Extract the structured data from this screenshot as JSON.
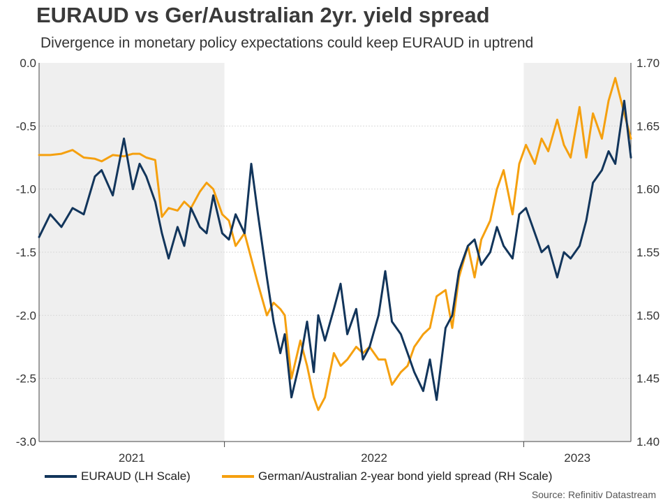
{
  "chart_data": {
    "type": "line",
    "title": "EURAUD vs Ger/Australian 2yr. yield spread",
    "subtitle": "Divergence in monetary policy expectations could keep EURAUD in uptrend",
    "source": "Source: Refinitiv Datastream",
    "x_tick_labels": [
      "2021",
      "2022",
      "2023"
    ],
    "x_range": [
      2020.55,
      2023.2
    ],
    "year_boundaries": [
      2021.38,
      2022.72
    ],
    "shaded_ranges": [
      [
        2020.55,
        2021.38
      ],
      [
        2022.72,
        2023.2
      ]
    ],
    "y_left": {
      "ylim": [
        -3.0,
        0.0
      ],
      "ticks": [
        "0.0",
        "-0.5",
        "-1.0",
        "-1.5",
        "-2.0",
        "-2.5",
        "-3.0"
      ]
    },
    "y_right": {
      "ylim": [
        1.4,
        1.7
      ],
      "ticks": [
        "1.70",
        "1.65",
        "1.60",
        "1.55",
        "1.50",
        "1.45",
        "1.40"
      ]
    },
    "grid": true,
    "series": [
      {
        "name": "EURAUD (LH Scale)",
        "axis": "left",
        "color": "#12355b",
        "x": [
          2020.55,
          2020.6,
          2020.65,
          2020.7,
          2020.75,
          2020.8,
          2020.83,
          2020.88,
          2020.93,
          2020.97,
          2021.0,
          2021.03,
          2021.07,
          2021.1,
          2021.13,
          2021.17,
          2021.2,
          2021.23,
          2021.27,
          2021.3,
          2021.33,
          2021.37,
          2021.4,
          2021.43,
          2021.47,
          2021.5,
          2021.53,
          2021.57,
          2021.6,
          2021.63,
          2021.65,
          2021.68,
          2021.72,
          2021.75,
          2021.78,
          2021.8,
          2021.83,
          2021.87,
          2021.9,
          2021.93,
          2021.97,
          2022.0,
          2022.03,
          2022.07,
          2022.1,
          2022.13,
          2022.17,
          2022.2,
          2022.23,
          2022.27,
          2022.3,
          2022.33,
          2022.37,
          2022.4,
          2022.43,
          2022.47,
          2022.5,
          2022.53,
          2022.57,
          2022.6,
          2022.63,
          2022.67,
          2022.7,
          2022.73,
          2022.77,
          2022.8,
          2022.83,
          2022.87,
          2022.9,
          2022.93,
          2022.97,
          2023.0,
          2023.03,
          2023.07,
          2023.1,
          2023.13,
          2023.17,
          2023.2
        ],
        "values": [
          -1.38,
          -1.2,
          -1.3,
          -1.15,
          -1.2,
          -0.9,
          -0.85,
          -1.05,
          -0.6,
          -1.0,
          -0.8,
          -0.9,
          -1.1,
          -1.35,
          -1.55,
          -1.3,
          -1.45,
          -1.15,
          -1.3,
          -1.35,
          -1.05,
          -1.35,
          -1.4,
          -1.2,
          -1.35,
          -0.8,
          -1.2,
          -1.7,
          -2.05,
          -2.3,
          -2.15,
          -2.65,
          -2.35,
          -2.05,
          -2.45,
          -2.0,
          -2.2,
          -1.95,
          -1.75,
          -2.15,
          -1.95,
          -2.35,
          -2.25,
          -2.0,
          -1.65,
          -2.05,
          -2.15,
          -2.3,
          -2.45,
          -2.6,
          -2.35,
          -2.67,
          -2.1,
          -2.0,
          -1.65,
          -1.45,
          -1.4,
          -1.6,
          -1.5,
          -1.3,
          -1.45,
          -1.55,
          -1.2,
          -1.15,
          -1.35,
          -1.5,
          -1.45,
          -1.7,
          -1.5,
          -1.55,
          -1.45,
          -1.25,
          -0.95,
          -0.85,
          -0.7,
          -0.8,
          -0.3,
          -0.75
        ]
      },
      {
        "name": "German/Australian 2-year bond yield spread (RH Scale)",
        "axis": "right",
        "color": "#f5a00f",
        "x": [
          2020.55,
          2020.6,
          2020.65,
          2020.7,
          2020.75,
          2020.8,
          2020.83,
          2020.88,
          2020.93,
          2020.97,
          2021.0,
          2021.03,
          2021.07,
          2021.1,
          2021.13,
          2021.17,
          2021.2,
          2021.23,
          2021.27,
          2021.3,
          2021.33,
          2021.37,
          2021.4,
          2021.43,
          2021.47,
          2021.5,
          2021.53,
          2021.57,
          2021.6,
          2021.63,
          2021.65,
          2021.68,
          2021.72,
          2021.75,
          2021.78,
          2021.8,
          2021.83,
          2021.87,
          2021.9,
          2021.93,
          2021.97,
          2022.0,
          2022.03,
          2022.07,
          2022.1,
          2022.13,
          2022.17,
          2022.2,
          2022.23,
          2022.27,
          2022.3,
          2022.33,
          2022.37,
          2022.4,
          2022.43,
          2022.47,
          2022.5,
          2022.53,
          2022.57,
          2022.6,
          2022.63,
          2022.67,
          2022.7,
          2022.73,
          2022.77,
          2022.8,
          2022.83,
          2022.87,
          2022.9,
          2022.93,
          2022.97,
          2023.0,
          2023.03,
          2023.07,
          2023.1,
          2023.13,
          2023.17,
          2023.2
        ],
        "values": [
          1.627,
          1.627,
          1.628,
          1.631,
          1.625,
          1.624,
          1.622,
          1.627,
          1.626,
          1.628,
          1.628,
          1.625,
          1.623,
          1.578,
          1.585,
          1.583,
          1.59,
          1.585,
          1.598,
          1.605,
          1.6,
          1.58,
          1.575,
          1.555,
          1.565,
          1.545,
          1.525,
          1.5,
          1.51,
          1.505,
          1.5,
          1.45,
          1.48,
          1.46,
          1.435,
          1.425,
          1.435,
          1.47,
          1.46,
          1.465,
          1.475,
          1.47,
          1.475,
          1.465,
          1.465,
          1.445,
          1.455,
          1.46,
          1.475,
          1.485,
          1.49,
          1.515,
          1.52,
          1.49,
          1.53,
          1.555,
          1.53,
          1.56,
          1.575,
          1.6,
          1.615,
          1.58,
          1.62,
          1.635,
          1.62,
          1.64,
          1.63,
          1.655,
          1.635,
          1.625,
          1.665,
          1.625,
          1.66,
          1.64,
          1.67,
          1.688,
          1.66,
          1.64
        ]
      }
    ]
  },
  "legend": {
    "euraud": "EURAUD (LH Scale)",
    "spread": "German/Australian 2-year bond yield spread (RH Scale)"
  },
  "colors": {
    "euraud": "#12355b",
    "spread": "#f5a00f",
    "shade": "#efefef",
    "grid": "#d9d9d9"
  }
}
